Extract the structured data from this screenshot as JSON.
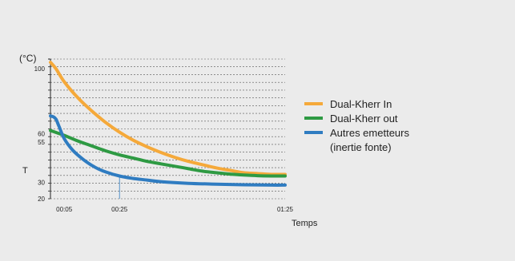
{
  "chart_data": {
    "type": "line",
    "unit_label": "(°C)",
    "ylabel": "T",
    "xlabel": "Temps",
    "y_ticks": [
      20,
      30,
      55,
      60,
      100
    ],
    "x_ticks": [
      "00:05",
      "00:25",
      "01:25"
    ],
    "ylim": [
      20,
      106
    ],
    "xlim_minutes": [
      0,
      85
    ],
    "x_markers_minutes": [
      5,
      25,
      85
    ],
    "grid": "horizontal-dashed",
    "legend_position": "right",
    "series": [
      {
        "name": "Dual-Kherr In",
        "color": "#f5a93a",
        "x_minutes": [
          0,
          2,
          5,
          10,
          15,
          20,
          25,
          30,
          35,
          40,
          45,
          50,
          55,
          60,
          65,
          70,
          75,
          80,
          85
        ],
        "y": [
          104,
          100,
          92,
          82,
          74,
          67,
          61,
          56,
          52,
          48.5,
          45.5,
          43,
          41,
          39,
          37.5,
          36,
          35.5,
          35,
          35
        ]
      },
      {
        "name": "Dual-Kherr out",
        "color": "#2e9a43",
        "x_minutes": [
          0,
          5,
          10,
          15,
          20,
          25,
          30,
          35,
          40,
          45,
          50,
          55,
          60,
          65,
          70,
          75,
          80,
          85
        ],
        "y": [
          62,
          59,
          55.5,
          52.5,
          49.5,
          47,
          45,
          43,
          41.5,
          40,
          38.5,
          37,
          36,
          35.2,
          34.6,
          34.2,
          34,
          34
        ]
      },
      {
        "name": "Autres emetteurs (inertie fonte)",
        "legend_lines": [
          "Autres emetteurs",
          "(inertie fonte)"
        ],
        "color": "#2f7cc1",
        "x_minutes": [
          0,
          1,
          2,
          3,
          5,
          8,
          12,
          16,
          20,
          25,
          30,
          35,
          40,
          50,
          60,
          70,
          80,
          85
        ],
        "y": [
          71,
          70.5,
          69,
          65,
          57,
          50,
          44,
          39.5,
          36.5,
          34,
          32.5,
          31.5,
          30.5,
          29.5,
          29,
          28.6,
          28.4,
          28.4
        ]
      }
    ]
  }
}
